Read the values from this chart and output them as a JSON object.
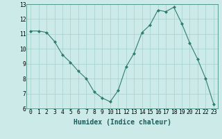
{
  "x": [
    0,
    1,
    2,
    3,
    4,
    5,
    6,
    7,
    8,
    9,
    10,
    11,
    12,
    13,
    14,
    15,
    16,
    17,
    18,
    19,
    20,
    21,
    22,
    23
  ],
  "y": [
    11.2,
    11.2,
    11.1,
    10.5,
    9.6,
    9.1,
    8.5,
    8.0,
    7.1,
    6.7,
    6.45,
    7.2,
    8.8,
    9.7,
    11.1,
    11.6,
    12.6,
    12.5,
    12.8,
    11.7,
    10.4,
    9.3,
    8.0,
    6.3
  ],
  "line_color": "#2e7d6e",
  "marker": "D",
  "marker_size": 2,
  "bg_color": "#cceae8",
  "grid_color": "#aad4d0",
  "xlabel": "Humidex (Indice chaleur)",
  "xlim": [
    -0.5,
    23.5
  ],
  "ylim": [
    6,
    13
  ],
  "yticks": [
    6,
    7,
    8,
    9,
    10,
    11,
    12,
    13
  ],
  "xticks": [
    0,
    1,
    2,
    3,
    4,
    5,
    6,
    7,
    8,
    9,
    10,
    11,
    12,
    13,
    14,
    15,
    16,
    17,
    18,
    19,
    20,
    21,
    22,
    23
  ],
  "xtick_labels": [
    "0",
    "1",
    "2",
    "3",
    "4",
    "5",
    "6",
    "7",
    "8",
    "9",
    "10",
    "11",
    "12",
    "13",
    "14",
    "15",
    "16",
    "17",
    "18",
    "19",
    "20",
    "21",
    "22",
    "23"
  ],
  "label_fontsize": 7,
  "tick_fontsize": 5.8
}
